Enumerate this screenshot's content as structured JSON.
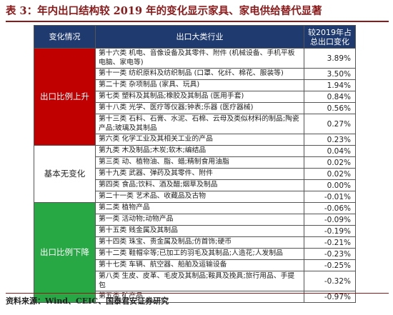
{
  "title": "表 3：年内出口结构较 2019 年的变化显示家具、家电供给替代显著",
  "headers": {
    "category": "变化情况",
    "industry": "出口大类行业",
    "change": "较2019年占总出口变化"
  },
  "groups": {
    "up": {
      "label": "出口比例上升"
    },
    "flat": {
      "label": "基本无变化"
    },
    "down": {
      "label": "出口比例下降"
    }
  },
  "rows": [
    {
      "text": "第十六类 机电、音像设备及其零件、附件 (机械设备、手机平板电脑、家电等)",
      "value": "3.89%"
    },
    {
      "text": "第十一类 纺织原料及纺织制品 (口罩、化纤、棉花、服装等)",
      "value": "3.50%"
    },
    {
      "text": "第二十类 杂项制品 (家具、玩具)",
      "value": "1.94%"
    },
    {
      "text": "第七类 塑料及其制品;橡胶及其制品 (医用手套)",
      "value": "0.84%"
    },
    {
      "text": "第十八类 光学、医疗等仪器;钟表;乐器 (医疗器械)",
      "value": "0.56%"
    },
    {
      "text": "第十三类 石料、石膏、水泥、石棉、云母及类似材料的制品;陶瓷产品;玻璃及其制品",
      "value": "0.27%"
    },
    {
      "text": "第六类 化学工业及其相关工业的产品",
      "value": "0.23%"
    },
    {
      "text": "第九类 木及制品;木炭;软木;编结品",
      "value": "0.04%"
    },
    {
      "text": "第三类 动、植物油、脂、蜡;精制食用油脂",
      "value": "0.02%"
    },
    {
      "text": "第十九类 武器、弹药及其零件、附件",
      "value": "0.02%"
    },
    {
      "text": "第四类 食品;饮料、酒及醋;烟草及制品",
      "value": "0.00%"
    },
    {
      "text": "第二十一类 艺术品、收藏品及古物",
      "value": "-0.01%"
    },
    {
      "text": "第二类 植物产品",
      "value": "-0.06%"
    },
    {
      "text": "第一类 活动物;动物产品",
      "value": "-0.09%"
    },
    {
      "text": "第十五类 贱金属及其制品",
      "value": "-0.19%"
    },
    {
      "text": "第十四类 珠宝、贵金属及制品;仿首饰;硬币",
      "value": "-0.21%"
    },
    {
      "text": "第十二类 鞋帽伞等;已加工的羽毛及其制品;人造花;人发制品",
      "value": "-0.23%"
    },
    {
      "text": "第十七类 车辆、航空器、船舶及运输设备",
      "value": "-0.25%"
    },
    {
      "text": "第八类 生皮、皮革、毛皮及其制品;鞍具及挽具;旅行用品、手提包",
      "value": "-0.32%"
    },
    {
      "text": "第五类 矿产品",
      "value": "-0.97%"
    }
  ],
  "source": "资料来源：Wind、CEIC、国泰君安证券研究",
  "colors": {
    "up": "#c00000",
    "flat": "#ffffff",
    "down": "#27a844",
    "header": "#1f3a6e"
  }
}
